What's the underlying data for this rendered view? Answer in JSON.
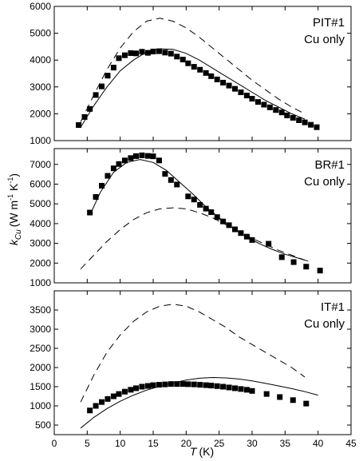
{
  "chart_data": {
    "type": "scatter",
    "shared_x": {
      "label": "T",
      "unit": "(K)",
      "lim": [
        0,
        45
      ],
      "ticks": [
        0,
        5,
        10,
        15,
        20,
        25,
        30,
        35,
        40,
        45
      ]
    },
    "shared_y": {
      "label": "k",
      "label_subscript": "Cu",
      "unit_prefix": "(W m",
      "unit_exp1": "-1",
      "unit_mid": " K",
      "unit_exp2": "-1",
      "unit_suffix": ")"
    },
    "grid": false,
    "panels": [
      {
        "label_line1": "PIT#1",
        "label_line2": "Cu only",
        "ylim": [
          1000,
          6000
        ],
        "yticks": [
          1000,
          2000,
          3000,
          4000,
          5000,
          6000
        ],
        "series": [
          {
            "style": "markers",
            "x": [
              3.7,
              4.6,
              5.4,
              6.3,
              7.2,
              8.1,
              9.0,
              9.8,
              10.7,
              11.6,
              12.4,
              13.3,
              14.2,
              15.0,
              15.9,
              16.8,
              17.7,
              18.6,
              19.5,
              20.3,
              21.2,
              22.1,
              23.0,
              23.8,
              24.7,
              25.6,
              26.5,
              27.4,
              28.3,
              29.2,
              30.0,
              30.9,
              31.8,
              32.7,
              33.6,
              34.5,
              35.3,
              36.2,
              37.1,
              38.0,
              38.9,
              39.8
            ],
            "y": [
              1580,
              1880,
              2180,
              2700,
              3020,
              3420,
              3720,
              4070,
              4180,
              4260,
              4250,
              4310,
              4270,
              4320,
              4330,
              4280,
              4240,
              4130,
              4020,
              3880,
              3750,
              3640,
              3520,
              3400,
              3280,
              3160,
              3050,
              2930,
              2800,
              2680,
              2560,
              2440,
              2340,
              2240,
              2140,
              2050,
              1940,
              1850,
              1760,
              1680,
              1590,
              1500
            ]
          },
          {
            "style": "solid",
            "x": [
              4,
              6,
              8,
              10,
              12,
              14,
              16,
              18,
              20,
              22,
              24,
              26,
              28,
              30,
              32,
              34,
              36,
              38
            ],
            "y": [
              1500,
              2300,
              3000,
              3600,
              4000,
              4300,
              4420,
              4400,
              4250,
              4000,
              3700,
              3400,
              3100,
              2800,
              2500,
              2250,
              2000,
              1800
            ]
          },
          {
            "style": "dashed",
            "x": [
              4,
              6,
              8,
              10,
              12,
              14,
              16,
              18,
              20,
              22,
              24,
              26,
              28,
              30,
              32,
              34,
              36,
              38
            ],
            "y": [
              1700,
              2700,
              3650,
              4450,
              5050,
              5450,
              5560,
              5450,
              5200,
              4850,
              4450,
              4050,
              3650,
              3250,
              2900,
              2550,
              2250,
              2000
            ]
          }
        ]
      },
      {
        "label_line1": "BR#1",
        "label_line2": "Cu only",
        "ylim": [
          1000,
          7800
        ],
        "yticks": [
          1000,
          2000,
          3000,
          4000,
          5000,
          6000,
          7000
        ],
        "series": [
          {
            "style": "markers",
            "x": [
              5.4,
              6.3,
              7.2,
              8.1,
              9.0,
              9.8,
              10.7,
              11.6,
              12.4,
              13.3,
              14.2,
              15.0,
              15.9,
              16.8,
              17.7,
              18.6,
              20.3,
              21.2,
              22.1,
              23.0,
              23.8,
              24.7,
              25.6,
              26.5,
              27.4,
              28.3,
              29.2,
              30.0,
              32.5,
              34.5,
              36.3,
              38.2,
              40.3
            ],
            "y": [
              4560,
              5350,
              5920,
              6420,
              6800,
              7020,
              7200,
              7320,
              7420,
              7460,
              7430,
              7410,
              7200,
              6520,
              6210,
              5980,
              5380,
              5220,
              4950,
              4760,
              4580,
              4330,
              4110,
              3920,
              3710,
              3520,
              3340,
              3170,
              2980,
              2300,
              2050,
              1820,
              1620
            ]
          },
          {
            "style": "solid",
            "x": [
              5.5,
              7,
              9,
              11,
              13,
              15,
              17,
              19,
              21,
              23,
              25,
              27,
              29,
              31,
              33,
              35,
              37,
              38.5
            ],
            "y": [
              4500,
              5600,
              6600,
              7100,
              7250,
              7100,
              6700,
              6100,
              5500,
              4850,
              4300,
              3800,
              3350,
              3000,
              2700,
              2450,
              2250,
              2100
            ]
          },
          {
            "style": "dashed",
            "x": [
              4,
              6,
              8,
              10,
              12,
              14,
              16,
              18,
              20,
              22,
              24,
              26,
              28,
              30,
              32,
              34,
              36,
              38
            ],
            "y": [
              1700,
              2400,
              3100,
              3700,
              4200,
              4550,
              4750,
              4800,
              4750,
              4550,
              4300,
              3950,
              3600,
              3250,
              2950,
              2650,
              2400,
              2150
            ]
          }
        ]
      },
      {
        "label_line1": "IT#1",
        "label_line2": "Cu only",
        "ylim": [
          250,
          4000
        ],
        "yticks": [
          500,
          1000,
          1500,
          2000,
          2500,
          3000,
          3500
        ],
        "series": [
          {
            "style": "markers",
            "x": [
              5.4,
              6.3,
              7.2,
              8.1,
              9.0,
              9.8,
              10.7,
              11.6,
              12.4,
              13.3,
              14.2,
              15.0,
              15.9,
              16.8,
              17.7,
              18.6,
              19.5,
              20.3,
              21.2,
              22.1,
              23.0,
              23.8,
              24.7,
              25.6,
              26.5,
              27.4,
              28.3,
              29.2,
              30.0,
              32.2,
              34.2,
              36.2,
              38.2
            ],
            "y": [
              880,
              1000,
              1100,
              1180,
              1250,
              1310,
              1370,
              1420,
              1460,
              1500,
              1520,
              1540,
              1550,
              1560,
              1570,
              1570,
              1570,
              1565,
              1560,
              1550,
              1540,
              1530,
              1515,
              1500,
              1480,
              1460,
              1440,
              1420,
              1390,
              1310,
              1230,
              1150,
              1060
            ]
          },
          {
            "style": "solid",
            "x": [
              4,
              6,
              8,
              10,
              12,
              14,
              16,
              18,
              20,
              22,
              24,
              26,
              28,
              30,
              32,
              34,
              36,
              38,
              40
            ],
            "y": [
              420,
              700,
              930,
              1120,
              1280,
              1410,
              1510,
              1600,
              1670,
              1720,
              1740,
              1730,
              1700,
              1650,
              1590,
              1520,
              1450,
              1370,
              1280
            ]
          },
          {
            "style": "dashed",
            "x": [
              4,
              6,
              8,
              10,
              12,
              14,
              16,
              18,
              20,
              22,
              24,
              26,
              28,
              30,
              32,
              34,
              36,
              38
            ],
            "y": [
              1100,
              1800,
              2400,
              2850,
              3200,
              3450,
              3600,
              3650,
              3600,
              3450,
              3250,
              3050,
              2800,
              2600,
              2400,
              2200,
              2000,
              1750
            ]
          }
        ]
      }
    ]
  }
}
